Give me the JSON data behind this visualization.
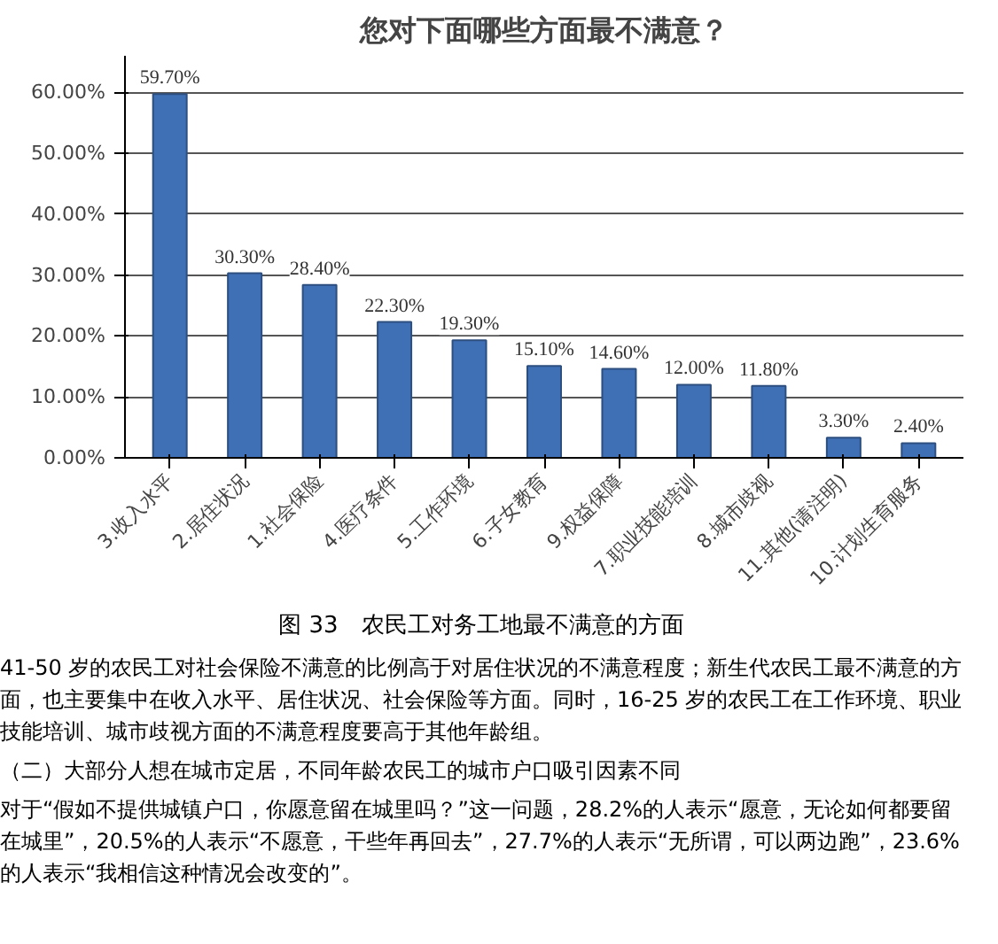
{
  "chart_data": {
    "type": "bar",
    "title": "您对下面哪些方面最不满意？",
    "categories": [
      "3.收入水平",
      "2.居住状况",
      "1.社会保险",
      "4.医疗条件",
      "5.工作环境",
      "6.子女教育",
      "9.权益保障",
      "7.职业技能培训",
      "8.城市歧视",
      "11.其他(请注明)",
      "10.计划生育服务"
    ],
    "values": [
      59.7,
      30.3,
      28.4,
      22.3,
      19.3,
      15.1,
      14.6,
      12.0,
      11.8,
      3.3,
      2.4
    ],
    "value_labels": [
      "59.70%",
      "30.30%",
      "28.40%",
      "22.30%",
      "19.30%",
      "15.10%",
      "14.60%",
      "12.00%",
      "11.80%",
      "3.30%",
      "2.40%"
    ],
    "color": "#3f6fb5",
    "ylim": [
      0,
      66
    ],
    "yticks": [
      {
        "value": 0,
        "label": "0.00%"
      },
      {
        "value": 10,
        "label": "10.00%"
      },
      {
        "value": 20,
        "label": "20.00%"
      },
      {
        "value": 30,
        "label": "30.00%"
      },
      {
        "value": 40,
        "label": "40.00%"
      },
      {
        "value": 50,
        "label": "50.00%"
      },
      {
        "value": 60,
        "label": "60.00%"
      }
    ],
    "grid": "y",
    "annotations": [
      "图 33　农民工对务工地最不满意的方面",
      "41-50 岁的农民工对社会保险不满意的比例高于对居住状况的不满意程度；新生代农民工最不满意的方面，也主要集中在收入水平、居住状况、社会保险等方面。同时，16-25 岁的农民工在工作环境、职业技能培训、城市歧视方面的不满意程度要高于其他年龄组。",
      "（二）大部分人想在城市定居，不同年龄农民工的城市户口吸引因素不同",
      "对于“假如不提供城镇户口，你愿意留在城里吗？”这一问题，28.2%的人表示“愿意，无论如何都要留在城里”，20.5%的人表示“不愿意，干些年再回去”，27.7%的人表示“无所谓，可以两边跑”，23.6%的人表示“我相信这种情况会改变的”。"
    ]
  }
}
